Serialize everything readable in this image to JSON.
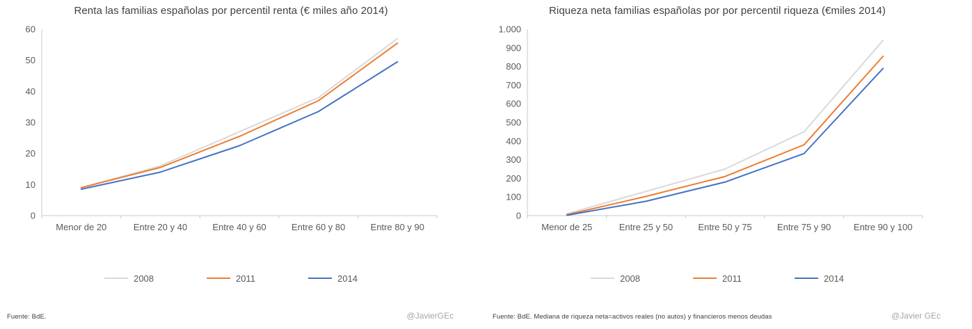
{
  "accent_colors": {
    "gray": "#d9d9d9",
    "orange": "#ed7d31",
    "blue": "#4472c4",
    "axis": "#c9c9c9"
  },
  "chart_data": [
    {
      "type": "line",
      "title": "Renta las familias españolas por percentil renta (€ miles año 2014)",
      "categories": [
        "Menor de 20",
        "Entre 20 y 40",
        "Entre 40 y 60",
        "Entre 60 y 80",
        "Entre 80 y 90"
      ],
      "series": [
        {
          "name": "2008",
          "color": "#d9d9d9",
          "values": [
            9,
            16,
            27,
            38,
            57
          ]
        },
        {
          "name": "2011",
          "color": "#ed7d31",
          "values": [
            9,
            15.5,
            25.5,
            37,
            55.5
          ]
        },
        {
          "name": "2014",
          "color": "#4472c4",
          "values": [
            8.5,
            14,
            22.5,
            33.5,
            49.5
          ]
        }
      ],
      "xlabel": "",
      "ylabel": "",
      "ylim": [
        0,
        60
      ],
      "ytick_step": 10,
      "ytick_labels": [
        "0",
        "10",
        "20",
        "30",
        "40",
        "50",
        "60"
      ],
      "grid": false,
      "legend_position": "bottom",
      "source_note": "Fuente: BdE.",
      "credit": "@JavierGEc"
    },
    {
      "type": "line",
      "title": "Riqueza neta familias españolas por por percentil riqueza (€miles 2014)",
      "categories": [
        "Menor de 25",
        "Entre 25 y 50",
        "Entre 50 y 75",
        "Entre 75 y 90",
        "Entre 90 y 100"
      ],
      "series": [
        {
          "name": "2008",
          "color": "#d9d9d9",
          "values": [
            10,
            130,
            250,
            450,
            940
          ]
        },
        {
          "name": "2011",
          "color": "#ed7d31",
          "values": [
            5,
            103,
            210,
            380,
            855
          ]
        },
        {
          "name": "2014",
          "color": "#4472c4",
          "values": [
            2,
            77,
            180,
            333,
            790
          ]
        }
      ],
      "xlabel": "",
      "ylabel": "",
      "ylim": [
        0,
        1000
      ],
      "ytick_step": 100,
      "ytick_labels": [
        "0",
        "100",
        "200",
        "300",
        "400",
        "500",
        "600",
        "700",
        "800",
        "900",
        "1.000"
      ],
      "grid": false,
      "legend_position": "bottom",
      "source_note": "Fuente: BdE. Mediana de riqueza neta=activos reales (no autos) y financieros menos deudas",
      "credit": "@Javier GEc"
    }
  ]
}
